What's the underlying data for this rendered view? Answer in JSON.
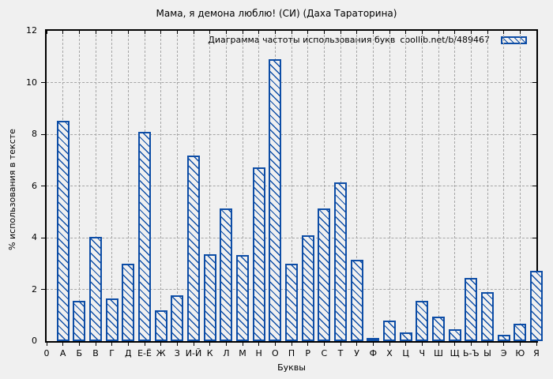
{
  "chart_data": {
    "type": "bar",
    "title": "Мама, я демона люблю! (СИ) (Даха Тараторина)",
    "legend": {
      "label": "Диаграмма частоты использования букв",
      "source": "coollib.net/b/489467"
    },
    "legend_position": "top-right-inside",
    "xlabel": "Буквы",
    "ylabel": "% использования в тексте",
    "ylim": [
      0,
      12
    ],
    "ytick_step": 2,
    "ytick_labels": [
      "0",
      "2",
      "4",
      "6",
      "8",
      "10",
      "12"
    ],
    "grid": true,
    "categories": [
      "0",
      "А",
      "Б",
      "В",
      "Г",
      "Д",
      "Е-Ё",
      "Ж",
      "З",
      "И-Й",
      "К",
      "Л",
      "М",
      "Н",
      "О",
      "П",
      "Р",
      "С",
      "Т",
      "У",
      "Ф",
      "Х",
      "Ц",
      "Ч",
      "Ш",
      "Щ",
      "Ь-Ъ",
      "Ы",
      "Э",
      "Ю",
      "Я"
    ],
    "values": [
      null,
      8.53,
      1.56,
      4.03,
      1.64,
      2.98,
      8.08,
      1.19,
      1.76,
      7.18,
      3.35,
      5.13,
      3.32,
      6.72,
      10.91,
      3.0,
      4.1,
      5.13,
      6.13,
      3.16,
      0.1,
      0.79,
      0.34,
      1.55,
      0.95,
      0.47,
      2.43,
      1.88,
      0.25,
      0.67,
      2.72
    ],
    "bar_style": "diagonal-hatch",
    "colors": {
      "bar": "#0d4da6",
      "background": "#f0f0f0",
      "grid": "#a6a6a6",
      "axis": "#000000",
      "text": "#000000"
    }
  }
}
